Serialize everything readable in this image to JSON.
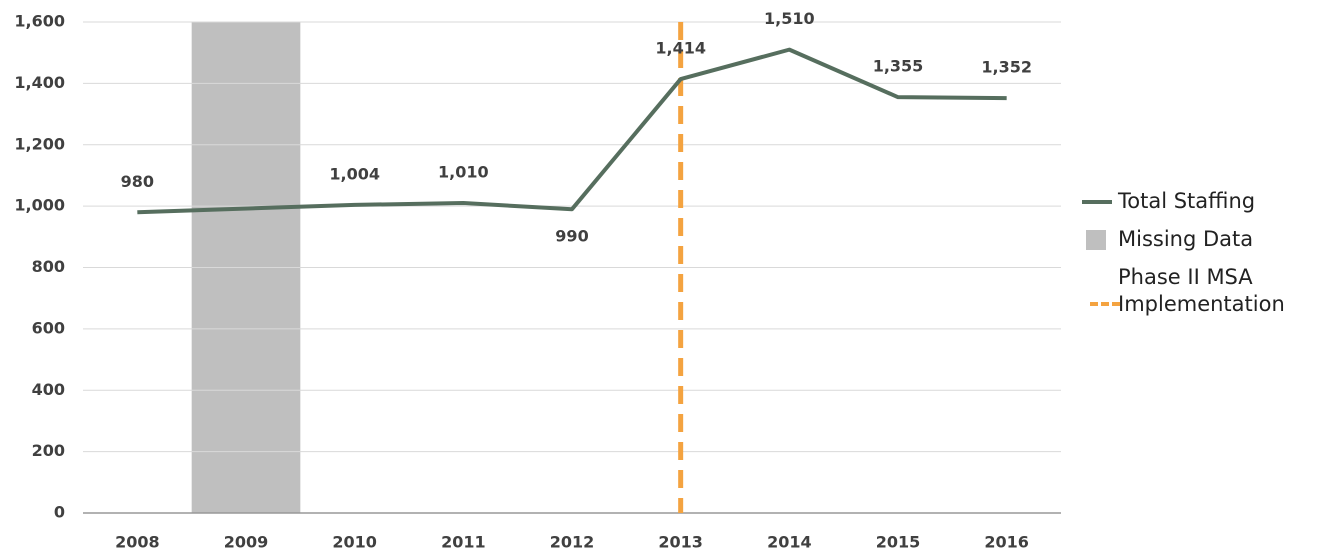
{
  "chart_data": {
    "type": "line",
    "x": [
      2008,
      2010,
      2011,
      2012,
      2013,
      2014,
      2015,
      2016
    ],
    "series": [
      {
        "name": "Total Staffing",
        "color": "#566e5e",
        "values": [
          980,
          1004,
          1010,
          990,
          1414,
          1510,
          1355,
          1352
        ],
        "value_labels": [
          "980",
          "1,004",
          "1,010",
          "990",
          "1,414",
          "1,510",
          "1,355",
          "1,352"
        ]
      }
    ],
    "missing_data": {
      "name": "Missing Data",
      "color": "#bfbfbf",
      "x": 2009
    },
    "marker_line": {
      "name": "Phase II MSA Implementation",
      "color": "#f4a340",
      "x": 2013
    },
    "xlim": [
      2007.5,
      2016.5
    ],
    "xticks": [
      2008,
      2009,
      2010,
      2011,
      2012,
      2013,
      2014,
      2015,
      2016
    ],
    "ylim": [
      0,
      1600
    ],
    "yticks": [
      0,
      200,
      400,
      600,
      800,
      {
        "value": 1000,
        "label": "1,000"
      },
      {
        "value": 1200,
        "label": "1,200"
      },
      {
        "value": 1400,
        "label": "1,400"
      },
      {
        "value": 1600,
        "label": "1,600"
      }
    ],
    "grid": true,
    "legend": "right"
  }
}
